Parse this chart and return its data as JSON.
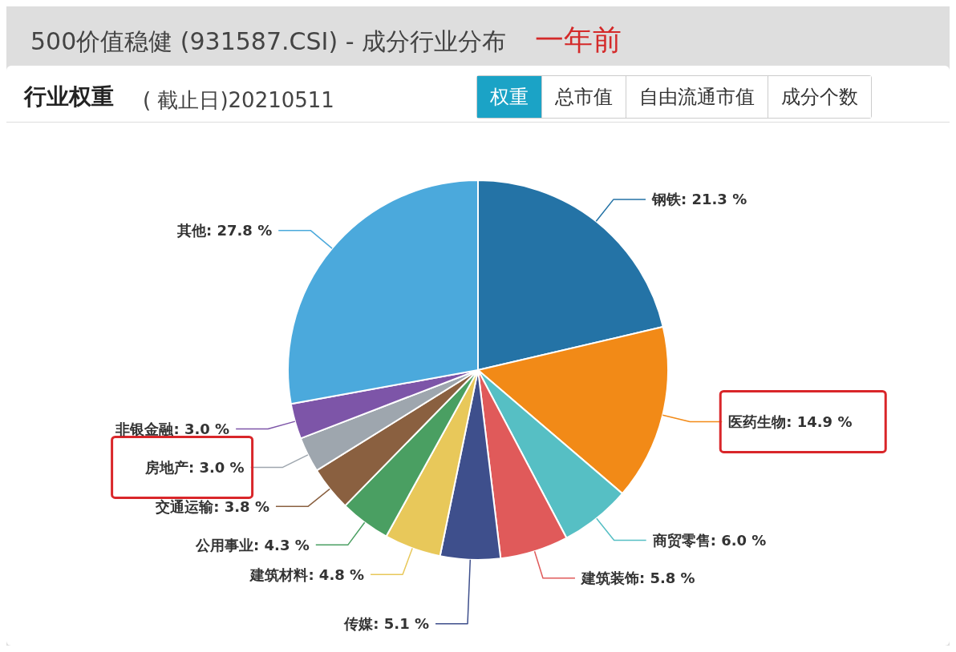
{
  "chart_data": {
    "type": "pie",
    "title": "500价值稳健 (931587.CSI) - 成分行业分布",
    "subtitle": "行业权重",
    "annotations": [
      "一年前",
      "( 截止日)20210511",
      "权重",
      "总市值",
      "自由流通市值",
      "成分个数"
    ],
    "categories": [
      "钢铁",
      "医药生物",
      "商贸零售",
      "建筑装饰",
      "传媒",
      "建筑材料",
      "公用事业",
      "交通运输",
      "房地产",
      "非银金融",
      "其他"
    ],
    "values": [
      21.3,
      14.9,
      6.0,
      5.8,
      5.1,
      4.8,
      4.3,
      3.8,
      3.0,
      3.0,
      27.8
    ],
    "value_labels": [
      "21.3 %",
      "14.9 %",
      "6.0 %",
      "5.8 %",
      "5.1 %",
      "4.8 %",
      "4.3 %",
      "3.8 %",
      "3.0 %",
      "3.0 %",
      "27.8 %"
    ],
    "colors": [
      "#2473a6",
      "#f28a17",
      "#56bfc4",
      "#e05a5a",
      "#3e4f8c",
      "#e8c85a",
      "#4a9f62",
      "#8a6040",
      "#9ea6ae",
      "#7d55a8",
      "#4ba9dc"
    ]
  }
}
